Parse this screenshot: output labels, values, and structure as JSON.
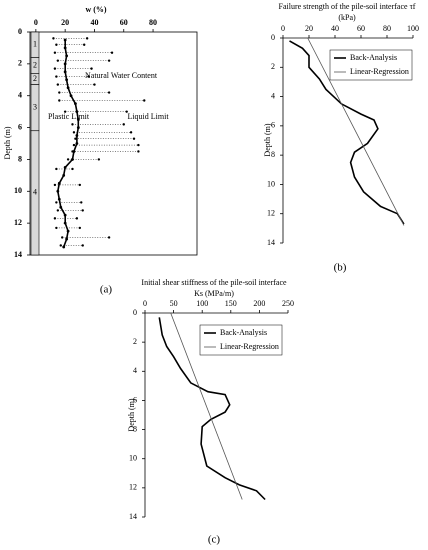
{
  "chart_data": [
    {
      "type": "profile",
      "title": [
        "w (%)"
      ],
      "caption": "(a)",
      "ylabel": "Depth (m)",
      "xlim": [
        -4,
        110
      ],
      "xticks": [
        0,
        20,
        40,
        60,
        80
      ],
      "ylim": [
        0,
        14
      ],
      "yticks": [
        0,
        2,
        4,
        6,
        8,
        10,
        12,
        14
      ],
      "box": true,
      "strata": {
        "bounds": [
          0,
          1.6,
          2.6,
          3.3,
          6.2,
          14
        ],
        "labels": [
          "1",
          "2",
          "2",
          "3",
          "4"
        ]
      },
      "series": [
        {
          "name": "Natural Water Content",
          "color": "#000000",
          "style": "line",
          "x": [
            20,
            20,
            21,
            20,
            20,
            21,
            22,
            24,
            27,
            28,
            29,
            29,
            28,
            28,
            26,
            25,
            20,
            19,
            16,
            15,
            16,
            17,
            20,
            20,
            22,
            21,
            19
          ],
          "y": [
            0.5,
            1,
            1.5,
            2,
            2.5,
            3,
            3.5,
            4,
            4.5,
            5,
            5.5,
            6,
            6.5,
            7,
            7.5,
            8,
            8.5,
            9,
            9.5,
            10,
            10.5,
            11,
            11.5,
            12,
            12.5,
            13,
            13.5
          ]
        },
        {
          "name": "Plastic Limit",
          "color": "#000000",
          "style": "dots",
          "x": [
            12,
            14,
            13,
            15,
            13,
            14,
            15,
            16,
            16,
            20,
            25,
            26,
            27,
            26,
            25,
            22,
            14,
            13,
            14,
            15,
            13,
            14,
            18,
            17
          ],
          "y": [
            0.4,
            0.8,
            1.3,
            1.8,
            2.3,
            2.8,
            3.3,
            3.8,
            4.3,
            5.0,
            5.8,
            6.3,
            6.7,
            7.1,
            7.5,
            8.0,
            8.6,
            9.6,
            10.7,
            11.2,
            11.7,
            12.3,
            12.9,
            13.4
          ]
        },
        {
          "name": "Liquid Limit",
          "color": "#000000",
          "style": "dots",
          "x": [
            35,
            33,
            52,
            50,
            38,
            36,
            40,
            50,
            74,
            62,
            60,
            65,
            67,
            70,
            70,
            43,
            25,
            30,
            31,
            32,
            28,
            30,
            50,
            32
          ],
          "y": [
            0.4,
            0.8,
            1.3,
            1.8,
            2.3,
            2.8,
            3.3,
            3.8,
            4.3,
            5.0,
            5.8,
            6.3,
            6.7,
            7.1,
            7.5,
            8.0,
            8.6,
            9.6,
            10.7,
            11.2,
            11.7,
            12.3,
            12.9,
            13.4
          ]
        }
      ]
    },
    {
      "type": "profile",
      "title": [
        "Failure strength of the pile-soil interface τf",
        "(kPa)"
      ],
      "caption": "(b)",
      "ylabel": "Depth (m)",
      "xlim": [
        0,
        100
      ],
      "xticks": [
        0,
        20,
        40,
        60,
        80,
        100
      ],
      "ylim": [
        0,
        14
      ],
      "yticks": [
        0,
        2,
        4,
        6,
        8,
        10,
        12,
        14
      ],
      "box": false,
      "legend": "upper right",
      "series": [
        {
          "name": "Back-Analysis",
          "color": "#000000",
          "style": "line",
          "x": [
            5,
            15,
            20,
            20,
            23,
            28,
            33,
            45,
            60,
            70,
            73,
            65,
            55,
            52,
            55,
            62,
            75,
            88,
            93
          ],
          "y": [
            0.2,
            0.7,
            1.2,
            2,
            2.3,
            2.8,
            3.5,
            4.5,
            5.2,
            5.6,
            6.2,
            7.2,
            7.8,
            8.5,
            9.5,
            10.5,
            11.5,
            12,
            12.7
          ]
        },
        {
          "name": "Linear-Regression",
          "color": "#555555",
          "style": "thin",
          "x": [
            19,
            93
          ],
          "y": [
            0,
            12.8
          ]
        }
      ]
    },
    {
      "type": "profile",
      "title": [
        "Initial shear stiffness of the pile-soil interface",
        "Ks (MPa/m)"
      ],
      "caption": "(c)",
      "ylabel": "Depth (m)",
      "xlim": [
        0,
        250
      ],
      "xticks": [
        0,
        50,
        100,
        150,
        200,
        250
      ],
      "ylim": [
        0,
        14
      ],
      "yticks": [
        0,
        2,
        4,
        6,
        8,
        10,
        12,
        14
      ],
      "box": false,
      "legend": "upper right",
      "series": [
        {
          "name": "Back-Analysis",
          "color": "#000000",
          "style": "line",
          "x": [
            25,
            28,
            30,
            38,
            50,
            62,
            80,
            110,
            140,
            148,
            140,
            115,
            100,
            98,
            108,
            140,
            165,
            195,
            210
          ],
          "y": [
            0.3,
            1,
            1.5,
            2.3,
            3,
            3.8,
            4.8,
            5.4,
            5.6,
            6.3,
            6.8,
            7.3,
            7.8,
            9,
            10.5,
            11.3,
            11.8,
            12.2,
            12.8
          ]
        },
        {
          "name": "Linear-Regression",
          "color": "#555555",
          "style": "thin",
          "x": [
            45,
            170
          ],
          "y": [
            0,
            12.8
          ]
        }
      ]
    }
  ]
}
